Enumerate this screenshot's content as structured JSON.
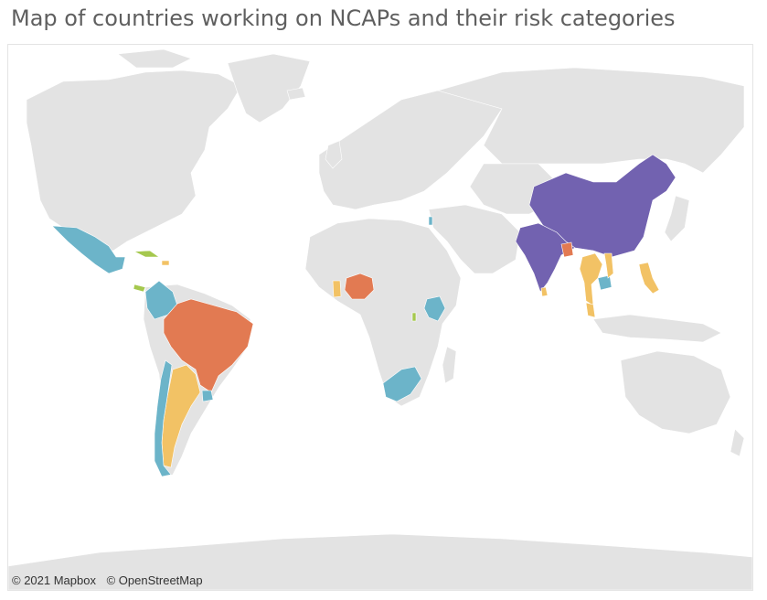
{
  "title": "Map of countries working on NCAPs and their risk categories",
  "attribution": {
    "mapbox": "© 2021 Mapbox",
    "osm": "© OpenStreetMap"
  },
  "colors": {
    "land": "#e3e3e3",
    "ocean": "#ffffff",
    "purple": "#7262b0",
    "orange": "#e27a52",
    "yellow": "#f2c265",
    "blue": "#6cb4c9",
    "green": "#a5c84e"
  },
  "highlighted_countries": [
    {
      "name": "China",
      "category": "purple"
    },
    {
      "name": "India",
      "category": "purple"
    },
    {
      "name": "Bangladesh",
      "category": "orange"
    },
    {
      "name": "Brazil",
      "category": "orange"
    },
    {
      "name": "Nigeria",
      "category": "orange"
    },
    {
      "name": "Mexico",
      "category": "blue"
    },
    {
      "name": "Colombia",
      "category": "blue"
    },
    {
      "name": "Chile",
      "category": "blue"
    },
    {
      "name": "Uruguay",
      "category": "blue"
    },
    {
      "name": "Kenya",
      "category": "blue"
    },
    {
      "name": "South Africa",
      "category": "blue"
    },
    {
      "name": "Cambodia",
      "category": "blue"
    },
    {
      "name": "Israel",
      "category": "blue"
    },
    {
      "name": "Panama",
      "category": "green"
    },
    {
      "name": "Cuba",
      "category": "green"
    },
    {
      "name": "Malawi",
      "category": "green"
    },
    {
      "name": "Argentina",
      "category": "yellow"
    },
    {
      "name": "Thailand",
      "category": "yellow"
    },
    {
      "name": "Malaysia",
      "category": "yellow"
    },
    {
      "name": "Philippines",
      "category": "yellow"
    },
    {
      "name": "Ghana",
      "category": "yellow"
    },
    {
      "name": "Sri Lanka",
      "category": "yellow"
    },
    {
      "name": "Dominican Republic",
      "category": "yellow"
    }
  ]
}
